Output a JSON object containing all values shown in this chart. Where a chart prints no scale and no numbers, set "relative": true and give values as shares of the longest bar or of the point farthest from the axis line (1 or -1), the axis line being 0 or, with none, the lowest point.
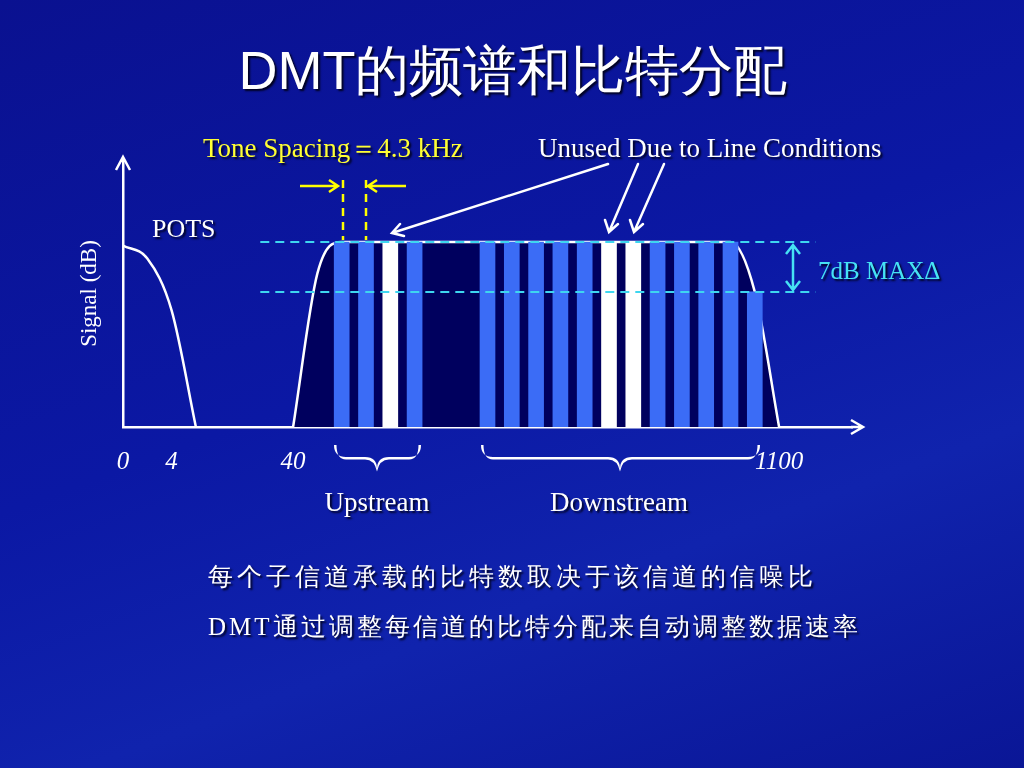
{
  "chart_data": {
    "type": "bar",
    "title": "DMT的频谱和比特分配",
    "ylabel": "Signal (dB)",
    "relative": true,
    "categories": [
      "0",
      null,
      "4",
      null,
      null,
      null,
      null,
      "40",
      null,
      null,
      null,
      null,
      null,
      null,
      null,
      null,
      null,
      null,
      null,
      null,
      null,
      null,
      null,
      null,
      null,
      null,
      null,
      "1100",
      null,
      null,
      null
    ],
    "series": [
      {
        "type": "area",
        "color": "#00005e",
        "values": [
          null,
          null,
          null,
          null,
          null,
          null,
          null,
          0,
          0.83,
          1,
          1,
          1,
          1,
          1,
          1,
          1,
          1,
          1,
          1,
          1,
          1,
          1,
          1,
          1,
          1,
          1,
          0.73,
          0,
          null,
          null,
          null
        ]
      },
      {
        "type": "line",
        "name": "POTS",
        "color": "#ffffff",
        "values": [
          0.98,
          0.91,
          0.63,
          0,
          null,
          null,
          null,
          null,
          null,
          null,
          null,
          null,
          null,
          null,
          null,
          null,
          null,
          null,
          null,
          null,
          null,
          null,
          null,
          null,
          null,
          null,
          null,
          null,
          null,
          null,
          null
        ]
      },
      {
        "values": [
          null,
          null,
          null,
          null,
          null,
          null,
          null,
          null,
          null,
          1,
          1,
          1,
          1,
          null,
          null,
          1,
          1,
          1,
          1,
          1,
          1,
          1,
          1,
          1,
          1,
          1,
          0.73,
          null,
          null,
          null,
          null
        ],
        "colors": [
          null,
          null,
          null,
          null,
          null,
          null,
          null,
          null,
          null,
          "#3b6cf6",
          "#3b6cf6",
          "#ffffff",
          "#3b6cf6",
          null,
          null,
          "#3b6cf6",
          "#3b6cf6",
          "#3b6cf6",
          "#3b6cf6",
          "#3b6cf6",
          "#ffffff",
          "#ffffff",
          "#3b6cf6",
          "#3b6cf6",
          "#3b6cf6",
          "#3b6cf6",
          "#3b6cf6",
          null,
          null,
          null,
          null
        ]
      }
    ],
    "ref_lines": [
      {
        "axis": "y",
        "value": 1,
        "color": "#3ed6f0",
        "line_style": "dashed"
      },
      {
        "axis": "y",
        "value": 0.73,
        "color": "#3ed6f0",
        "line_style": "dashed"
      }
    ],
    "annotations": [
      "Tone Spacing＝4.3 kHz",
      "Unused Due to Line Conditions",
      "7dB MAXΔ",
      "Upstream",
      "Downstream",
      "每个子信道承载的比特数取决于该信道的信噪比",
      "DMT通过调整每信道的比特分配来自动调整数据速率"
    ],
    "grid": false,
    "legend": false,
    "tick_labels": "x",
    "marker": "none"
  }
}
